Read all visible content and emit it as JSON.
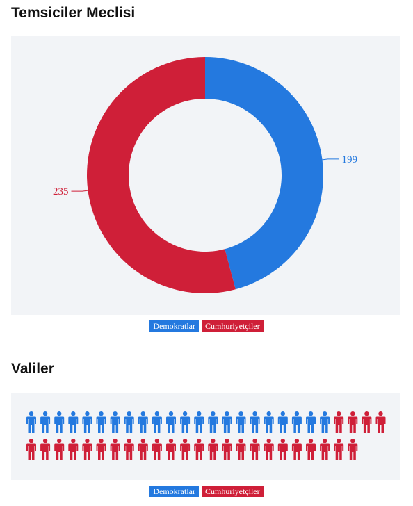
{
  "colors": {
    "democrat": "#2479df",
    "republican": "#cf1f38",
    "panel_bg": "#f2f4f7"
  },
  "house": {
    "title": "Temsiciler Meclisi"
  },
  "governors": {
    "title": "Valiler"
  },
  "legend": {
    "democrat_label": "Demokratlar",
    "republican_label": "Cumhuriyetçiler"
  },
  "icons": {
    "person": "person-icon"
  },
  "chart_data": [
    {
      "type": "pie",
      "variant": "donut",
      "title": "Temsiciler Meclisi",
      "labels": [
        "Demokratlar",
        "Cumhuriyetçiler"
      ],
      "values": [
        199,
        235
      ],
      "data_labels": [
        "199",
        "235"
      ],
      "colors": [
        "#2479df",
        "#cf1f38"
      ],
      "legend_position": "bottom-center"
    },
    {
      "type": "pictogram",
      "title": "Valiler",
      "labels": [
        "Demokratlar",
        "Cumhuriyetçiler"
      ],
      "values": [
        22,
        28
      ],
      "icons_per_row": 26,
      "colors": [
        "#2479df",
        "#cf1f38"
      ],
      "legend_position": "bottom-center"
    }
  ]
}
